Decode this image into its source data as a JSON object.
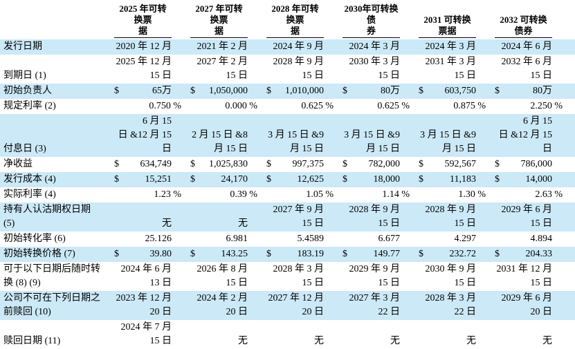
{
  "colors": {
    "stripe": "#cbe9f7",
    "text": "#000000",
    "background": "#ffffff"
  },
  "table": {
    "corner_label": "",
    "columns": [
      {
        "label": "2025 年可转换票\n据"
      },
      {
        "label": "2027 年可转换票\n据"
      },
      {
        "label": "2028 年可转换票\n据"
      },
      {
        "label": "2030年可转换债\n券"
      },
      {
        "label": "2031 可转换票据"
      },
      {
        "label": "2032 可转换债券"
      }
    ],
    "rows": [
      {
        "label": "发行日期",
        "shaded": true,
        "cells": [
          {
            "text": "2020 年 12 月"
          },
          {
            "text": "2021 年 2 月"
          },
          {
            "text": "2024 年 9 月"
          },
          {
            "text": "2024 年 3 月"
          },
          {
            "text": "2024 年 3 月"
          },
          {
            "text": "2024 年 6 月"
          }
        ]
      },
      {
        "label": "到期日 (1)",
        "shaded": false,
        "cells": [
          {
            "text": "2025 年 12 月\n15 日"
          },
          {
            "text": "2027 年 2 月\n15 日"
          },
          {
            "text": "2028 年 9 月\n15 日"
          },
          {
            "text": "2030 年 3 月\n15 日"
          },
          {
            "text": "2031 年 3 月\n15 日"
          },
          {
            "text": "2032 年 6 月\n15 日"
          }
        ]
      },
      {
        "label": "初始负责人",
        "shaded": true,
        "cells": [
          {
            "pre": "$",
            "text": "65万"
          },
          {
            "pre": "$",
            "text": "1,050,000"
          },
          {
            "pre": "$",
            "text": "1,010,000"
          },
          {
            "pre": "$",
            "text": "80万"
          },
          {
            "pre": "$",
            "text": "603,750"
          },
          {
            "pre": "$",
            "text": "80万"
          }
        ]
      },
      {
        "label": "规定利率 (2)",
        "shaded": false,
        "cells": [
          {
            "text": "0.750 %",
            "pct": true
          },
          {
            "text": "0.000 %",
            "pct": true
          },
          {
            "text": "0.625 %",
            "pct": true
          },
          {
            "text": "0.625 %",
            "pct": true
          },
          {
            "text": "0.875 %",
            "pct": true
          },
          {
            "text": "2.250 %",
            "pct": true
          }
        ]
      },
      {
        "label": "付息日 (3)",
        "shaded": true,
        "cells": [
          {
            "text": "6 月 15\n日 &12 月 15\n日"
          },
          {
            "text": "2 月 15 日 &8\n月 15 日"
          },
          {
            "text": "3 月 15 日 &9\n月 15 日"
          },
          {
            "text": "3 月 15 日 &9\n月 15 日"
          },
          {
            "text": "3 月 15 日 &9\n月 15 日"
          },
          {
            "text": "6 月 15\n日 &12 月 15\n日"
          }
        ]
      },
      {
        "label": "净收益",
        "shaded": false,
        "cells": [
          {
            "pre": "$",
            "text": "634,749"
          },
          {
            "pre": "$",
            "text": "1,025,830"
          },
          {
            "pre": "$",
            "text": "997,375"
          },
          {
            "pre": "$",
            "text": "782,000"
          },
          {
            "pre": "$",
            "text": "592,567"
          },
          {
            "pre": "$",
            "text": "786,000"
          }
        ]
      },
      {
        "label": "发行成本 (4)",
        "shaded": true,
        "cells": [
          {
            "pre": "$",
            "text": "15,251"
          },
          {
            "pre": "$",
            "text": "24,170"
          },
          {
            "pre": "$",
            "text": "12,625"
          },
          {
            "pre": "$",
            "text": "18,000"
          },
          {
            "pre": "$",
            "text": "11,183"
          },
          {
            "pre": "$",
            "text": "14,000"
          }
        ]
      },
      {
        "label": "实际利率 (4)",
        "shaded": false,
        "cells": [
          {
            "text": "1.23 %",
            "pct": true
          },
          {
            "text": "0.39 %",
            "pct": true
          },
          {
            "text": "1.05 %",
            "pct": true
          },
          {
            "text": "1.14 %",
            "pct": true
          },
          {
            "text": "1.30 %",
            "pct": true
          },
          {
            "text": "2.63 %",
            "pct": true
          }
        ]
      },
      {
        "label": "持有人认沽期权日期\n(5)",
        "shaded": true,
        "cells": [
          {
            "text": "无"
          },
          {
            "text": "无"
          },
          {
            "text": "2027 年 9 月\n15 日"
          },
          {
            "text": "2028 年 9 月\n15 日"
          },
          {
            "text": "2028 年 9 月\n15 日"
          },
          {
            "text": "2029 年 6 月\n15 日"
          }
        ]
      },
      {
        "label": "初始转化率 (6)",
        "shaded": false,
        "cells": [
          {
            "text": "25.126"
          },
          {
            "text": "6.981"
          },
          {
            "text": "5.4589"
          },
          {
            "text": "6.677"
          },
          {
            "text": "4.297"
          },
          {
            "text": "4.894"
          }
        ]
      },
      {
        "label": "初始转换价格 (7)",
        "shaded": true,
        "cells": [
          {
            "pre": "$",
            "text": "39.80"
          },
          {
            "pre": "$",
            "text": "143.25"
          },
          {
            "pre": "$",
            "text": "183.19"
          },
          {
            "pre": "$",
            "text": "149.77"
          },
          {
            "pre": "$",
            "text": "232.72"
          },
          {
            "pre": "$",
            "text": "204.33"
          }
        ]
      },
      {
        "label": "可于以下日期后随时转\n换 (8) (9)",
        "shaded": false,
        "cells": [
          {
            "text": "2024 年 6 月\n13 日"
          },
          {
            "text": "2026 年 8 月\n15 日"
          },
          {
            "text": "2028 年 3 月\n15 日"
          },
          {
            "text": "2029 年 9 月\n15 日"
          },
          {
            "text": "2030 年 9 月\n15 日"
          },
          {
            "text": "2031 年 12 月\n15 日"
          }
        ]
      },
      {
        "label": "公司不可在下列日期之\n前赎回 (10)",
        "shaded": true,
        "cells": [
          {
            "text": "2023 年 12 月\n20 日"
          },
          {
            "text": "2024 年 2 月\n20 日"
          },
          {
            "text": "2027 年 12 月\n20 日"
          },
          {
            "text": "2027 年 3 月\n22 日"
          },
          {
            "text": "2028 年 3 月\n22 日"
          },
          {
            "text": "2029 年 6 月\n20 日"
          }
        ]
      },
      {
        "label": "赎回日期 (11)",
        "shaded": false,
        "cells": [
          {
            "text": "2024 年 7 月\n15 日"
          },
          {
            "text": "无"
          },
          {
            "text": "无"
          },
          {
            "text": "无"
          },
          {
            "text": "无"
          },
          {
            "text": "无"
          }
        ]
      }
    ]
  }
}
